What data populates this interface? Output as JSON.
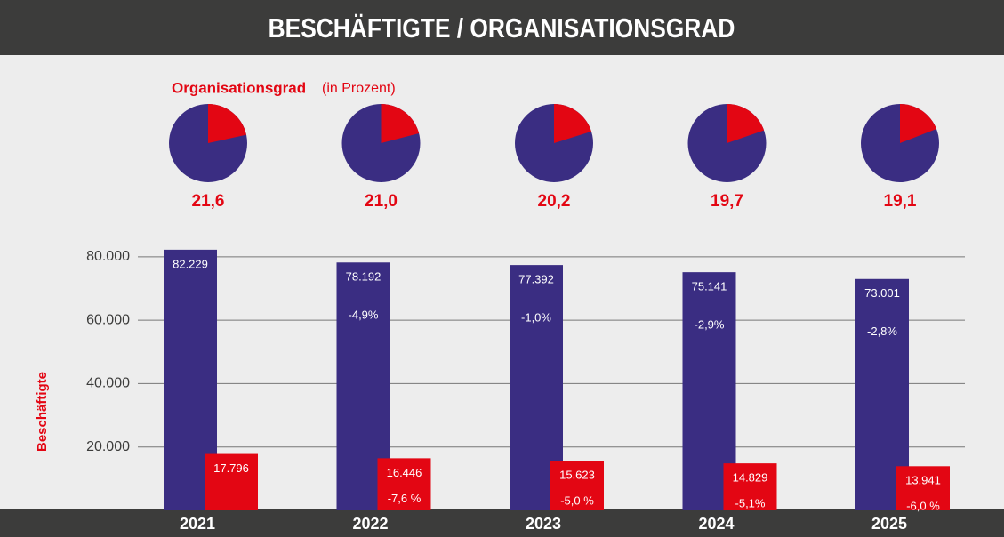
{
  "title": "BESCHÄFTIGTE / ORGANISATIONSGRAD",
  "chart_data": [
    {
      "type": "pie",
      "title": "Organisationsgrad",
      "subtitle": "(in Prozent)",
      "values": [
        21.6,
        21.0,
        20.2,
        19.7,
        19.1
      ],
      "value_labels": [
        "21,6",
        "21,0",
        "20,2",
        "19,7",
        "19,1"
      ],
      "color": "#e30613",
      "rest_color": "#3a2d82"
    },
    {
      "type": "bar",
      "ylabel": "Beschäftigte",
      "categories": [
        "2021",
        "2022",
        "2023",
        "2024",
        "2025"
      ],
      "series": [
        {
          "color": "#3a2d82",
          "values": [
            82229,
            78192,
            77392,
            75141,
            73001
          ],
          "value_labels": [
            "82.229",
            "78.192",
            "77.392",
            "75.141",
            "73.001"
          ],
          "change_labels": [
            null,
            "-4,9%",
            "-1,0%",
            "-2,9%",
            "-2,8%"
          ]
        },
        {
          "color": "#e30613",
          "values": [
            17796,
            16446,
            15623,
            14829,
            13941
          ],
          "value_labels": [
            "17.796",
            "16.446",
            "15.623",
            "14.829",
            "13.941"
          ],
          "change_labels": [
            null,
            "-7,6 %",
            "-5,0 %",
            "-5,1%",
            "-6,0 %"
          ]
        }
      ],
      "ylim": [
        0,
        85000
      ],
      "yticks": [
        {
          "value": 20000,
          "label": "20.000"
        },
        {
          "value": 40000,
          "label": "40.000"
        },
        {
          "value": 60000,
          "label": "60.000"
        },
        {
          "value": 80000,
          "label": "80.000"
        }
      ],
      "grid": true
    }
  ]
}
